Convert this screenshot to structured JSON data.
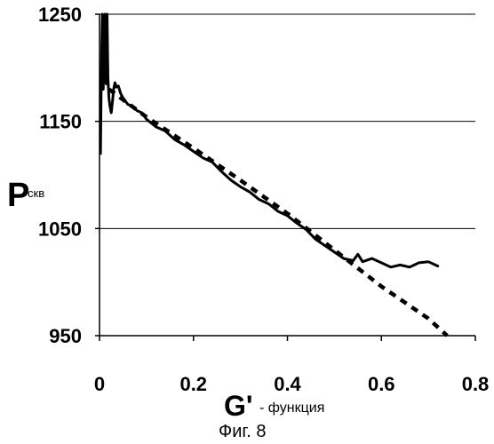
{
  "chart_data": {
    "type": "line",
    "title": "",
    "ylabel": {
      "main": "P",
      "sub": "скв"
    },
    "xlabel": {
      "main": "G'",
      "sub": "- функция"
    },
    "caption": "Фиг. 8",
    "xlim": [
      0,
      0.8
    ],
    "ylim": [
      950,
      1250
    ],
    "x_ticks": [
      0,
      0.2,
      0.4,
      0.6,
      0.8
    ],
    "x_tick_labels": [
      "0",
      "0.2",
      "0.4",
      "0.6",
      "0.8"
    ],
    "y_ticks": [
      950,
      1050,
      1150,
      1250
    ],
    "y_tick_labels": [
      "950",
      "1050",
      "1150",
      "1250"
    ],
    "grid": "horizontal",
    "series": [
      {
        "style": "solid",
        "color": "#000000",
        "x": [
          0.002,
          0.004,
          0.006,
          0.008,
          0.01,
          0.012,
          0.014,
          0.016,
          0.018,
          0.02,
          0.022,
          0.025,
          0.028,
          0.03,
          0.033,
          0.036,
          0.04,
          0.045,
          0.05,
          0.06,
          0.07,
          0.08,
          0.09,
          0.1,
          0.12,
          0.14,
          0.16,
          0.18,
          0.2,
          0.22,
          0.24,
          0.26,
          0.28,
          0.3,
          0.32,
          0.34,
          0.36,
          0.38,
          0.4,
          0.42,
          0.44,
          0.46,
          0.48,
          0.5,
          0.52,
          0.54,
          0.55,
          0.56,
          0.58,
          0.6,
          0.62,
          0.64,
          0.66,
          0.68,
          0.7,
          0.72
        ],
        "y": [
          1120,
          1200,
          1250,
          1180,
          1240,
          1250,
          1185,
          1250,
          1190,
          1172,
          1165,
          1158,
          1170,
          1180,
          1186,
          1182,
          1183,
          1176,
          1172,
          1166,
          1164,
          1160,
          1158,
          1152,
          1145,
          1141,
          1133,
          1128,
          1122,
          1116,
          1112,
          1103,
          1095,
          1089,
          1084,
          1077,
          1073,
          1066,
          1062,
          1055,
          1049,
          1040,
          1034,
          1028,
          1022,
          1020,
          1026,
          1019,
          1022,
          1018,
          1014,
          1016,
          1014,
          1018,
          1019,
          1015
        ]
      },
      {
        "style": "dashed",
        "color": "#000000",
        "x": [
          0.02,
          0.1,
          0.2,
          0.3,
          0.4,
          0.5,
          0.6,
          0.7,
          0.74
        ],
        "y": [
          1180,
          1154,
          1125,
          1095,
          1064,
          1030,
          996,
          966,
          950
        ]
      }
    ]
  }
}
